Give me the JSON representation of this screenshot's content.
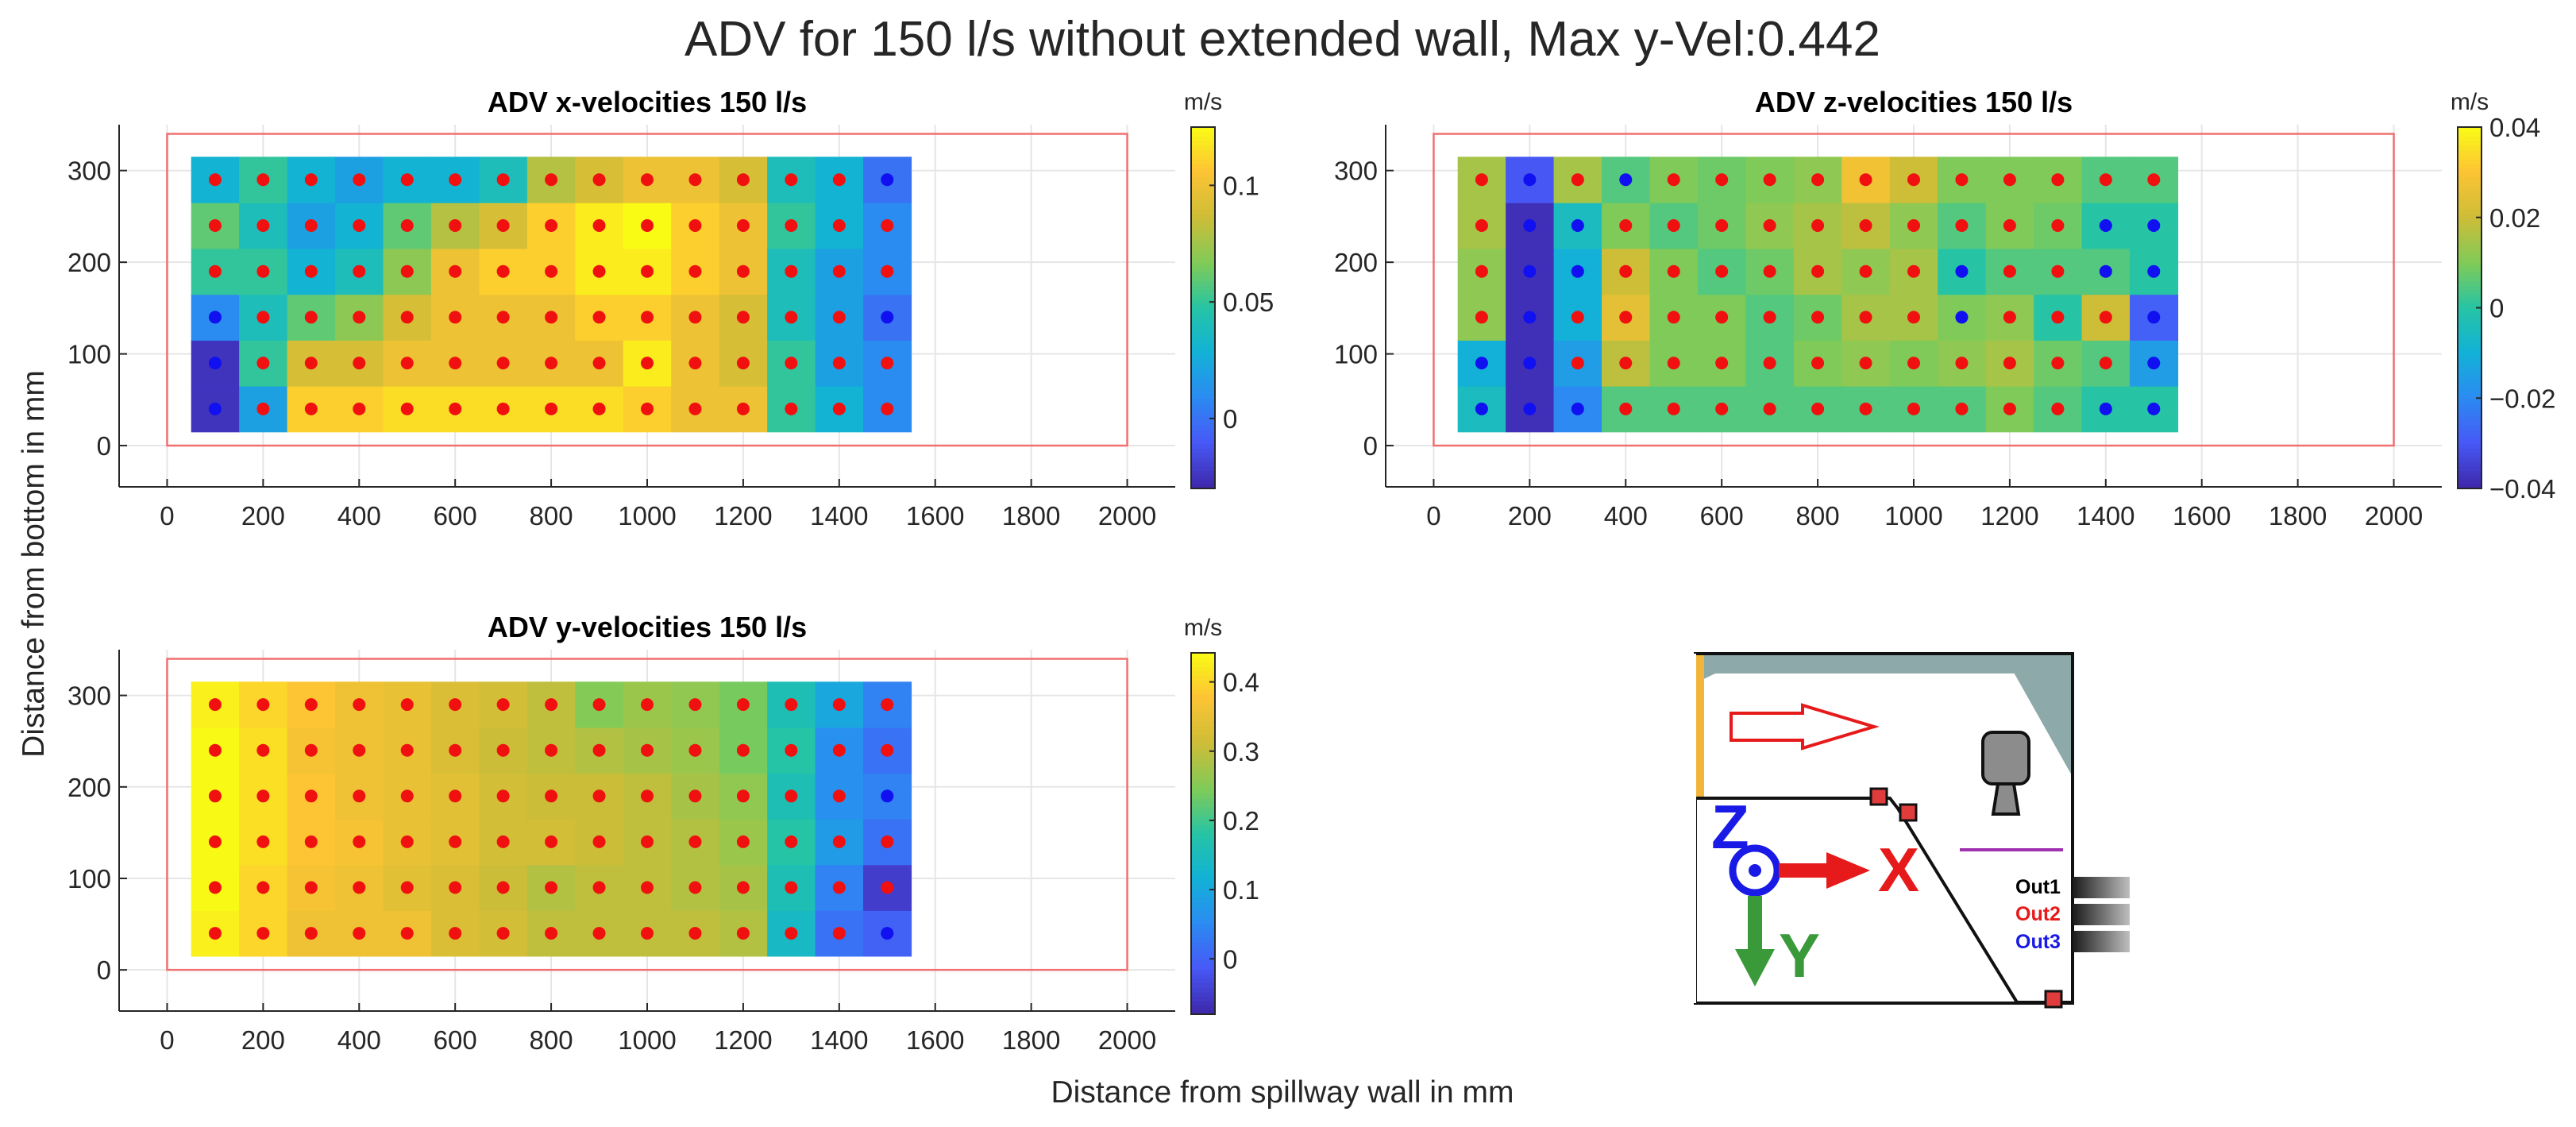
{
  "figure": {
    "title": "ADV for 150 l/s without extended wall, Max y-Vel:0.442",
    "xlabel": "Distance from spillway wall in mm",
    "ylabel": "Distance from bottom in mm"
  },
  "chart_data": [
    {
      "type": "heatmap",
      "id": "x",
      "title": "ADV x-velocities 150 l/s",
      "xlim": [
        -100,
        2100
      ],
      "ylim": [
        -45,
        350
      ],
      "xticks": [
        0,
        200,
        400,
        600,
        800,
        1000,
        1200,
        1400,
        1600,
        1800,
        2000
      ],
      "yticks": [
        0,
        100,
        200,
        300
      ],
      "columns": [
        100,
        200,
        300,
        400,
        500,
        600,
        700,
        800,
        900,
        1000,
        1100,
        1200,
        1300,
        1400,
        1500
      ],
      "rows": [
        40,
        90,
        140,
        190,
        240,
        290
      ],
      "grid_bounds": {
        "x": [
          50,
          1550
        ],
        "y": [
          15,
          315
        ]
      },
      "reference_box": {
        "x": [
          0,
          2000
        ],
        "y": [
          0,
          340
        ]
      },
      "colorbar": {
        "label": "m/s",
        "clim": [
          -0.03,
          0.125
        ],
        "ticks": [
          0,
          0.05,
          0.1
        ],
        "tick_labels": [
          "0",
          "0.05",
          "0.1"
        ]
      },
      "values": [
        [
          -0.025,
          0.02,
          0.11,
          0.11,
          0.115,
          0.115,
          0.115,
          0.115,
          0.115,
          0.11,
          0.1,
          0.1,
          0.05,
          0.03,
          0.01
        ],
        [
          -0.025,
          0.05,
          0.09,
          0.09,
          0.1,
          0.1,
          0.1,
          0.1,
          0.1,
          0.12,
          0.1,
          0.09,
          0.05,
          0.02,
          0.01
        ],
        [
          0.01,
          0.04,
          0.06,
          0.07,
          0.09,
          0.1,
          0.1,
          0.1,
          0.11,
          0.11,
          0.1,
          0.09,
          0.04,
          0.02,
          0.0
        ],
        [
          0.05,
          0.05,
          0.03,
          0.04,
          0.07,
          0.1,
          0.11,
          0.11,
          0.12,
          0.12,
          0.11,
          0.1,
          0.04,
          0.02,
          0.01
        ],
        [
          0.06,
          0.04,
          0.02,
          0.03,
          0.06,
          0.08,
          0.09,
          0.11,
          0.12,
          0.125,
          0.11,
          0.1,
          0.05,
          0.03,
          0.01
        ],
        [
          0.03,
          0.05,
          0.03,
          0.02,
          0.03,
          0.03,
          0.04,
          0.08,
          0.09,
          0.1,
          0.1,
          0.09,
          0.04,
          0.03,
          0.0
        ]
      ],
      "marker_colors": [
        [
          "blue",
          "red",
          "red",
          "red",
          "red",
          "red",
          "red",
          "red",
          "red",
          "red",
          "red",
          "red",
          "red",
          "red",
          "red"
        ],
        [
          "blue",
          "red",
          "red",
          "red",
          "red",
          "red",
          "red",
          "red",
          "red",
          "red",
          "red",
          "red",
          "red",
          "red",
          "red"
        ],
        [
          "blue",
          "red",
          "red",
          "red",
          "red",
          "red",
          "red",
          "red",
          "red",
          "red",
          "red",
          "red",
          "red",
          "red",
          "blue"
        ],
        [
          "red",
          "red",
          "red",
          "red",
          "red",
          "red",
          "red",
          "red",
          "red",
          "red",
          "red",
          "red",
          "red",
          "red",
          "red"
        ],
        [
          "red",
          "red",
          "red",
          "red",
          "red",
          "red",
          "red",
          "red",
          "red",
          "red",
          "red",
          "red",
          "red",
          "red",
          "red"
        ],
        [
          "red",
          "red",
          "red",
          "red",
          "red",
          "red",
          "red",
          "red",
          "red",
          "red",
          "red",
          "red",
          "red",
          "red",
          "blue"
        ]
      ]
    },
    {
      "type": "heatmap",
      "id": "z",
      "title": "ADV z-velocities 150 l/s",
      "xlim": [
        -100,
        2100
      ],
      "ylim": [
        -45,
        350
      ],
      "xticks": [
        0,
        200,
        400,
        600,
        800,
        1000,
        1200,
        1400,
        1600,
        1800,
        2000
      ],
      "yticks": [
        0,
        100,
        200,
        300
      ],
      "columns": [
        100,
        200,
        300,
        400,
        500,
        600,
        700,
        800,
        900,
        1000,
        1100,
        1200,
        1300,
        1400,
        1500
      ],
      "rows": [
        40,
        90,
        140,
        190,
        240,
        290
      ],
      "grid_bounds": {
        "x": [
          50,
          1550
        ],
        "y": [
          15,
          315
        ]
      },
      "reference_box": {
        "x": [
          0,
          2000
        ],
        "y": [
          0,
          340
        ]
      },
      "colorbar": {
        "label": "m/s",
        "clim": [
          -0.04,
          0.04
        ],
        "ticks": [
          -0.04,
          -0.02,
          0,
          0.02,
          0.04
        ],
        "tick_labels": [
          "−0.04",
          "−0.02",
          "0",
          "0.02",
          "0.04"
        ]
      },
      "values": [
        [
          -0.005,
          -0.038,
          -0.02,
          0.005,
          0.005,
          0.005,
          0.005,
          0.005,
          0.005,
          0.005,
          0.005,
          0.01,
          0.005,
          0.0,
          0.0
        ],
        [
          -0.01,
          -0.038,
          -0.015,
          0.018,
          0.01,
          0.01,
          0.005,
          0.01,
          0.012,
          0.01,
          0.012,
          0.015,
          0.008,
          0.005,
          -0.015
        ],
        [
          0.012,
          -0.038,
          -0.01,
          0.025,
          0.01,
          0.01,
          0.005,
          0.008,
          0.015,
          0.015,
          0.01,
          0.012,
          0.0,
          0.02,
          -0.028
        ],
        [
          0.012,
          -0.038,
          -0.01,
          0.02,
          0.01,
          0.005,
          0.008,
          0.015,
          0.012,
          0.015,
          0.0,
          0.005,
          0.005,
          0.005,
          0.0
        ],
        [
          0.015,
          -0.038,
          -0.005,
          0.01,
          0.005,
          0.008,
          0.012,
          0.015,
          0.018,
          0.012,
          0.005,
          0.01,
          0.008,
          0.0,
          0.0
        ],
        [
          0.015,
          -0.03,
          0.015,
          0.005,
          0.01,
          0.008,
          0.01,
          0.012,
          0.028,
          0.02,
          0.01,
          0.01,
          0.01,
          0.005,
          0.005
        ]
      ],
      "marker_colors": [
        [
          "blue",
          "blue",
          "blue",
          "red",
          "red",
          "red",
          "red",
          "red",
          "red",
          "red",
          "red",
          "red",
          "red",
          "blue",
          "blue"
        ],
        [
          "blue",
          "blue",
          "red",
          "red",
          "red",
          "red",
          "red",
          "red",
          "red",
          "red",
          "red",
          "red",
          "red",
          "red",
          "blue"
        ],
        [
          "red",
          "blue",
          "red",
          "red",
          "red",
          "red",
          "red",
          "red",
          "red",
          "red",
          "blue",
          "red",
          "red",
          "red",
          "blue"
        ],
        [
          "red",
          "blue",
          "blue",
          "red",
          "red",
          "red",
          "red",
          "red",
          "red",
          "red",
          "blue",
          "red",
          "red",
          "blue",
          "blue"
        ],
        [
          "red",
          "blue",
          "blue",
          "red",
          "red",
          "red",
          "red",
          "red",
          "red",
          "red",
          "red",
          "red",
          "red",
          "blue",
          "blue"
        ],
        [
          "red",
          "blue",
          "red",
          "blue",
          "red",
          "red",
          "red",
          "red",
          "red",
          "red",
          "red",
          "red",
          "red",
          "red",
          "red"
        ]
      ]
    },
    {
      "type": "heatmap",
      "id": "y",
      "title": "ADV y-velocities 150 l/s",
      "xlim": [
        -100,
        2100
      ],
      "ylim": [
        -45,
        350
      ],
      "xticks": [
        0,
        200,
        400,
        600,
        800,
        1000,
        1200,
        1400,
        1600,
        1800,
        2000
      ],
      "yticks": [
        0,
        100,
        200,
        300
      ],
      "columns": [
        100,
        200,
        300,
        400,
        500,
        600,
        700,
        800,
        900,
        1000,
        1100,
        1200,
        1300,
        1400,
        1500
      ],
      "rows": [
        40,
        90,
        140,
        190,
        240,
        290
      ],
      "grid_bounds": {
        "x": [
          50,
          1550
        ],
        "y": [
          15,
          315
        ]
      },
      "reference_box": {
        "x": [
          0,
          2000
        ],
        "y": [
          0,
          340
        ]
      },
      "colorbar": {
        "label": "m/s",
        "clim": [
          -0.08,
          0.442
        ],
        "ticks": [
          0,
          0.1,
          0.2,
          0.3,
          0.4
        ],
        "tick_labels": [
          "0",
          "0.1",
          "0.2",
          "0.3",
          "0.4"
        ]
      },
      "values": [
        [
          0.43,
          0.4,
          0.36,
          0.36,
          0.36,
          0.33,
          0.32,
          0.3,
          0.3,
          0.3,
          0.3,
          0.29,
          0.14,
          0.02,
          0.0
        ],
        [
          0.44,
          0.4,
          0.37,
          0.36,
          0.34,
          0.33,
          0.31,
          0.29,
          0.3,
          0.3,
          0.29,
          0.28,
          0.16,
          0.04,
          -0.05
        ],
        [
          0.44,
          0.41,
          0.38,
          0.37,
          0.35,
          0.34,
          0.32,
          0.32,
          0.31,
          0.3,
          0.29,
          0.27,
          0.18,
          0.08,
          0.02
        ],
        [
          0.44,
          0.41,
          0.38,
          0.36,
          0.35,
          0.34,
          0.32,
          0.31,
          0.31,
          0.3,
          0.28,
          0.26,
          0.16,
          0.06,
          0.04
        ],
        [
          0.44,
          0.41,
          0.37,
          0.36,
          0.35,
          0.33,
          0.31,
          0.3,
          0.29,
          0.28,
          0.27,
          0.24,
          0.18,
          0.06,
          0.02
        ],
        [
          0.43,
          0.4,
          0.38,
          0.36,
          0.35,
          0.33,
          0.32,
          0.3,
          0.25,
          0.27,
          0.26,
          0.24,
          0.16,
          0.1,
          0.04
        ]
      ],
      "marker_colors": [
        [
          "red",
          "red",
          "red",
          "red",
          "red",
          "red",
          "red",
          "red",
          "red",
          "red",
          "red",
          "red",
          "red",
          "red",
          "blue"
        ],
        [
          "red",
          "red",
          "red",
          "red",
          "red",
          "red",
          "red",
          "red",
          "red",
          "red",
          "red",
          "red",
          "red",
          "red",
          "red"
        ],
        [
          "red",
          "red",
          "red",
          "red",
          "red",
          "red",
          "red",
          "red",
          "red",
          "red",
          "red",
          "red",
          "red",
          "red",
          "red"
        ],
        [
          "red",
          "red",
          "red",
          "red",
          "red",
          "red",
          "red",
          "red",
          "red",
          "red",
          "red",
          "red",
          "red",
          "red",
          "blue"
        ],
        [
          "red",
          "red",
          "red",
          "red",
          "red",
          "red",
          "red",
          "red",
          "red",
          "red",
          "red",
          "red",
          "red",
          "red",
          "red"
        ],
        [
          "red",
          "red",
          "red",
          "red",
          "red",
          "red",
          "red",
          "red",
          "red",
          "red",
          "red",
          "red",
          "red",
          "red",
          "red"
        ]
      ]
    }
  ],
  "legend_diagram": {
    "labels": {
      "z": "Z",
      "x": "X",
      "y": "Y",
      "out1": "Out1",
      "out2": "Out2",
      "out3": "Out3"
    },
    "colors": {
      "z": "#1a1ae6",
      "x": "#e61a1a",
      "y": "#3a9a3a",
      "out1": "#000000",
      "out2": "#e61a1a",
      "out3": "#1a1ae6",
      "wall": "#8ea9a9",
      "gate": "#f2b53a",
      "marker": "#e03c3c"
    }
  },
  "colors": {
    "marker_red": "#f01010",
    "marker_blue": "#1010f0",
    "frame": "#f07070",
    "grid": "#e6e6e6",
    "axis": "#262626"
  }
}
